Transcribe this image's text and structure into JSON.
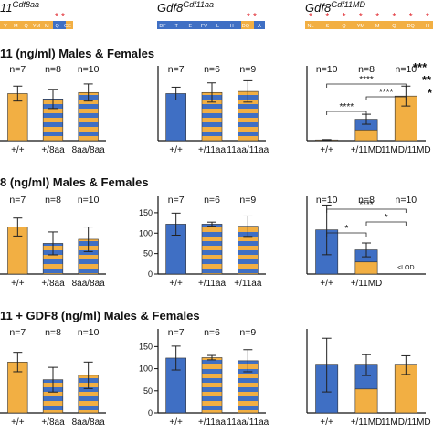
{
  "colors": {
    "orange": "#F2AF43",
    "blue": "#3F6FC4",
    "red_star": "#E0242B",
    "axis": "#111111"
  },
  "headers": {
    "h1": {
      "gene": "11",
      "sup": "Gdf8aa"
    },
    "h2": {
      "gene": "Gdf8",
      "sup": "Gdf11aa"
    },
    "h3": {
      "gene": "Gdf8",
      "sup": "Gdf11MD"
    }
  },
  "schematics": {
    "s1": {
      "labels": [
        "Y",
        "M",
        "Q",
        "YM",
        "M",
        "Q",
        "GE"
      ],
      "stars": [
        "*",
        "*"
      ]
    },
    "s2": {
      "labels": [
        "DF",
        "T",
        "E",
        "FV",
        "L",
        "H",
        "DQ",
        "A"
      ],
      "stars": [
        "*",
        "*"
      ]
    },
    "s3": {
      "labels": [
        "NL",
        "S",
        "Q",
        "YM",
        "M",
        "Q",
        "DQ",
        "H"
      ],
      "stars": [
        "*",
        "*",
        "*",
        "*",
        "*",
        "*",
        "*",
        "*"
      ]
    }
  },
  "row_titles": {
    "r1": "11 (ng/ml) Males & Females",
    "r2": "8 (ng/ml) Males & Females",
    "r3": "11 + GDF8 (ng/ml) Males & Females"
  },
  "edge_stars": [
    "***",
    "**",
    "*"
  ],
  "chart_data": [
    {
      "id": "r1c1",
      "type": "bar",
      "categories": [
        "+/+",
        "+/8aa",
        "8aa/8aa"
      ],
      "values": [
        4.4,
        3.9,
        4.5
      ],
      "err": [
        0.7,
        0.9,
        0.8
      ],
      "fill": [
        "orange",
        "stripe",
        "stripe"
      ],
      "n_labels": [
        "n=7",
        "n=8",
        "n=10"
      ],
      "ylim": [
        0,
        7
      ]
    },
    {
      "id": "r1c2",
      "type": "bar",
      "categories": [
        "+/+",
        "+/11aa",
        "11aa/11aa"
      ],
      "values": [
        4.4,
        4.5,
        4.6
      ],
      "err": [
        0.6,
        0.9,
        1.0
      ],
      "fill": [
        "blue",
        "stripe",
        "stripe"
      ],
      "n_labels": [
        "n=7",
        "n=6",
        "n=9"
      ],
      "ylim": [
        0,
        7
      ]
    },
    {
      "id": "r1c3",
      "type": "bar",
      "categories": [
        "+/+",
        "+/11MD",
        "11MD/11MD"
      ],
      "values": [
        2,
        60,
        125
      ],
      "err": [
        1,
        14,
        28
      ],
      "fill": [
        "orange",
        "half",
        "orange"
      ],
      "n_labels": [
        "n=10",
        "n=8",
        "n=10"
      ],
      "ylim": [
        0,
        210
      ],
      "significance": [
        {
          "from": 0,
          "to": 1,
          "label": "****"
        },
        {
          "from": 0,
          "to": 2,
          "label": "****"
        },
        {
          "from": 1,
          "to": 2,
          "label": "****"
        }
      ]
    },
    {
      "id": "r2c1",
      "type": "bar",
      "categories": [
        "+/+",
        "+/8aa",
        "8aa/8aa"
      ],
      "values": [
        115,
        75,
        85
      ],
      "err": [
        22,
        28,
        30
      ],
      "fill": [
        "orange",
        "stripe",
        "stripe"
      ],
      "n_labels": [
        "n=7",
        "n=8",
        "n=10"
      ],
      "ylim": [
        0,
        190
      ]
    },
    {
      "id": "r2c2",
      "type": "bar",
      "categories": [
        "+/+",
        "+/11aa",
        "+/11aa"
      ],
      "values": [
        122,
        122,
        117
      ],
      "err": [
        27,
        5,
        25
      ],
      "fill": [
        "blue",
        "stripe",
        "stripe"
      ],
      "n_labels": [
        "n=7",
        "n=6",
        "n=9"
      ],
      "ylim": [
        0,
        190
      ],
      "yticks": [
        0,
        50,
        100,
        150
      ]
    },
    {
      "id": "r2c3",
      "type": "bar",
      "categories": [
        "+/+",
        "+/11MD",
        ""
      ],
      "values": [
        128,
        70,
        0
      ],
      "err": [
        72,
        20,
        0
      ],
      "fill": [
        "blue",
        "half",
        "none"
      ],
      "n_labels": [
        "n=10",
        "n=8",
        "n=10"
      ],
      "ylim": [
        0,
        225
      ],
      "inside_label": "<LOD",
      "significance": [
        {
          "from": 0,
          "to": 1,
          "label": "*"
        },
        {
          "from": 0,
          "to": 2,
          "label": "****"
        },
        {
          "from": 1,
          "to": 2,
          "label": "*"
        }
      ]
    },
    {
      "id": "r3c1",
      "type": "bar",
      "categories": [
        "+/+",
        "+/8aa",
        "8aa/8aa"
      ],
      "values": [
        115,
        75,
        85
      ],
      "err": [
        22,
        28,
        30
      ],
      "fill": [
        "orange",
        "stripe",
        "stripe"
      ],
      "n_labels": [
        "n=7",
        "n=8",
        "n=10"
      ],
      "ylim": [
        0,
        190
      ]
    },
    {
      "id": "r3c2",
      "type": "bar",
      "categories": [
        "+/+",
        "+/11aa",
        "11aa/11aa"
      ],
      "values": [
        124,
        125,
        118
      ],
      "err": [
        27,
        5,
        25
      ],
      "fill": [
        "blue",
        "stripe",
        "stripe"
      ],
      "n_labels": [
        "n=7",
        "n=6",
        "n=9"
      ],
      "ylim": [
        0,
        190
      ],
      "yticks": [
        0,
        50,
        100,
        150
      ]
    },
    {
      "id": "r3c3",
      "type": "bar",
      "categories": [
        "+/+",
        "+/11MD",
        "11MD/11MD"
      ],
      "values": [
        128,
        128,
        128
      ],
      "err": [
        72,
        28,
        25
      ],
      "fill": [
        "blue",
        "half",
        "orange"
      ],
      "n_labels": [],
      "ylim": [
        0,
        225
      ]
    }
  ]
}
